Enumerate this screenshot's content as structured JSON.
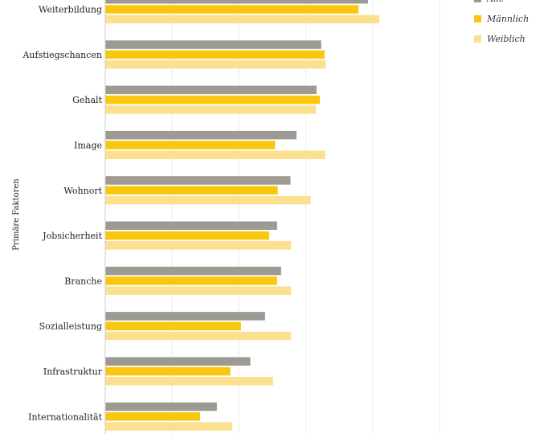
{
  "chart_data": {
    "type": "bar",
    "orientation": "horizontal",
    "ylabel": "Primäre Faktoren",
    "categories": [
      "Weiterbildung",
      "Aufstiegschancen",
      "Gehalt",
      "Image",
      "Wohnort",
      "Jobsicherheit",
      "Branche",
      "Sozialleistung",
      "Infrastruktur",
      "Internationalität"
    ],
    "series": [
      {
        "name": "Alle",
        "color": "#9c9a92",
        "values": [
          3.93,
          3.23,
          3.16,
          2.86,
          2.77,
          2.57,
          2.63,
          2.39,
          2.17,
          1.67
        ]
      },
      {
        "name": "Männlich",
        "color": "#f9c80e",
        "values": [
          3.79,
          3.28,
          3.21,
          2.54,
          2.58,
          2.45,
          2.57,
          2.03,
          1.87,
          1.42
        ]
      },
      {
        "name": "Weiblich",
        "color": "#fbe08f",
        "values": [
          4.1,
          3.3,
          3.15,
          3.29,
          3.07,
          2.78,
          2.78,
          2.78,
          2.51,
          1.9
        ]
      }
    ],
    "xlim": [
      0,
      5
    ],
    "grid": true,
    "legend": "top-right"
  }
}
